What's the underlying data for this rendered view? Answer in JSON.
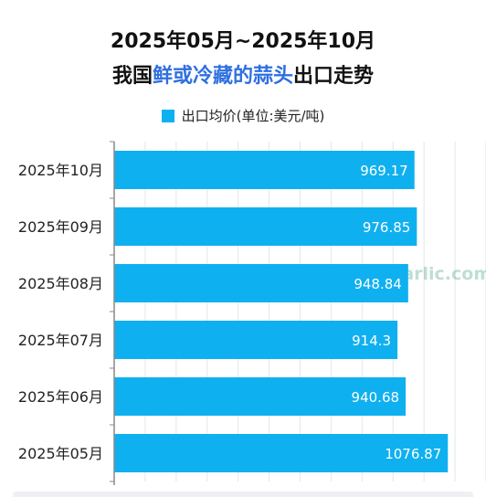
{
  "title": {
    "line1": "2025年05月~2025年10月",
    "line2_pre": "我国",
    "line2_highlight": "鲜或冷藏的蒜头",
    "line2_post": "出口走势"
  },
  "colors": {
    "bar": "#0fb0f0",
    "highlight": "#2f6fe0",
    "grid": "#e4e6ea",
    "axis": "#888888"
  },
  "watermark": "国际大蒜贸易网 www.51garlic.com",
  "chart_data": {
    "type": "bar",
    "orientation": "horizontal",
    "categories": [
      "2025年10月",
      "2025年09月",
      "2025年08月",
      "2025年07月",
      "2025年06月",
      "2025年05月"
    ],
    "series": [
      {
        "name": "出口均价(单位:美元/吨)",
        "values": [
          969.17,
          976.85,
          948.84,
          914.3,
          940.68,
          1076.87
        ]
      }
    ],
    "xlim": [
      0,
      1200
    ],
    "grid": true,
    "legend": "top-center"
  }
}
